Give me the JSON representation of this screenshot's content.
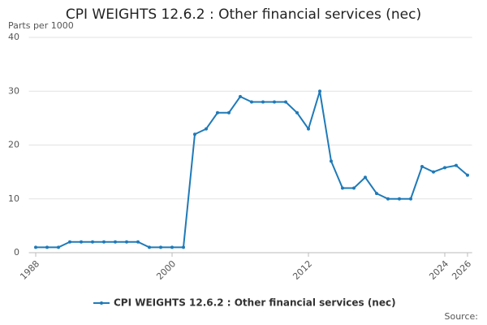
{
  "chart_data": {
    "type": "line",
    "title": "CPI WEIGHTS 12.6.2 : Other financial services (nec)",
    "y_label": "Parts per 1000",
    "source": "Source:",
    "x": [
      1988,
      1989,
      1990,
      1991,
      1992,
      1993,
      1994,
      1995,
      1996,
      1997,
      1998,
      1999,
      2000,
      2001,
      2002,
      2003,
      2004,
      2005,
      2006,
      2007,
      2008,
      2009,
      2010,
      2011,
      2012,
      2013,
      2014,
      2015,
      2016,
      2017,
      2018,
      2019,
      2020,
      2021,
      2022,
      2023,
      2024,
      2025,
      2026
    ],
    "series": [
      {
        "name": "CPI WEIGHTS 12.6.2 : Other financial services (nec)",
        "color": "#1f7ab8",
        "values": [
          1,
          1,
          1,
          2,
          2,
          2,
          2,
          2,
          2,
          2,
          1,
          1,
          1,
          1,
          22,
          23,
          26,
          26,
          29,
          28,
          28,
          28,
          28,
          26,
          23,
          30,
          17,
          12,
          12,
          14,
          11,
          10,
          10,
          10,
          16,
          15,
          15.8,
          16.2,
          14.4
        ]
      }
    ],
    "xlim": [
      1987.4,
      2026.4
    ],
    "xticks": [
      1988,
      2000,
      2012,
      2024,
      2026
    ],
    "ylim": [
      0,
      40
    ],
    "yticks": [
      0,
      10,
      20,
      30,
      40
    ],
    "grid": true
  }
}
